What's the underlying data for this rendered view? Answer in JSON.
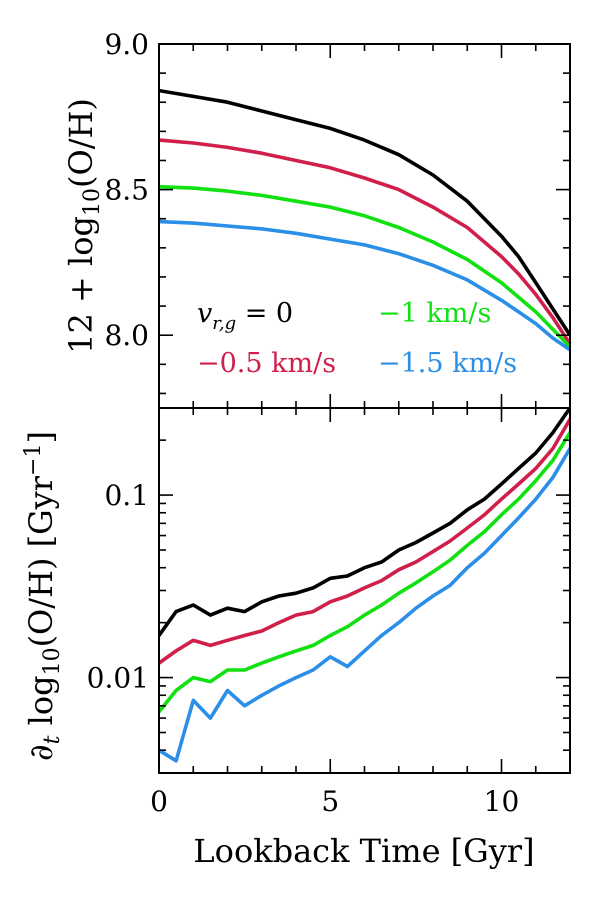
{
  "chart_data": [
    {
      "type": "line",
      "ylabel": "12 + log10(O/H)",
      "xlim": [
        0,
        12
      ],
      "ylim": [
        7.75,
        9.0
      ],
      "yticks": [
        {
          "value": 8.0,
          "label": "8.0"
        },
        {
          "value": 8.5,
          "label": "8.5"
        },
        {
          "value": 9.0,
          "label": "9.0"
        }
      ],
      "legend_placement": "lower-left",
      "x": [
        0,
        1,
        2,
        3,
        4,
        5,
        6,
        7,
        8,
        9,
        10,
        10.5,
        11,
        11.5,
        12
      ],
      "series": [
        {
          "name": "v_{r,g} = 0",
          "color": "#000000",
          "values": [
            8.84,
            8.82,
            8.8,
            8.77,
            8.74,
            8.71,
            8.67,
            8.62,
            8.55,
            8.46,
            8.34,
            8.27,
            8.18,
            8.09,
            8.0
          ]
        },
        {
          "name": "−0.5 km/s",
          "color": "#d01f4a",
          "values": [
            8.67,
            8.66,
            8.645,
            8.625,
            8.6,
            8.575,
            8.54,
            8.5,
            8.44,
            8.37,
            8.27,
            8.21,
            8.14,
            8.06,
            7.97
          ]
        },
        {
          "name": "−1 km/s",
          "color": "#11e011",
          "values": [
            8.51,
            8.505,
            8.495,
            8.48,
            8.46,
            8.44,
            8.41,
            8.37,
            8.32,
            8.26,
            8.18,
            8.13,
            8.08,
            8.02,
            7.96
          ]
        },
        {
          "name": "−1.5 km/s",
          "color": "#2b8fe8",
          "values": [
            8.39,
            8.385,
            8.375,
            8.365,
            8.35,
            8.33,
            8.31,
            8.28,
            8.24,
            8.19,
            8.12,
            8.08,
            8.04,
            7.99,
            7.95
          ]
        }
      ]
    },
    {
      "type": "line",
      "xlabel": "Lookback Time [Gyr]",
      "ylabel": "∂t log10(O/H) [Gyr−1]",
      "xlim": [
        0,
        12
      ],
      "ylim": [
        0.003,
        0.3
      ],
      "yscale": "log",
      "xticks": [
        {
          "value": 0,
          "label": "0"
        },
        {
          "value": 5,
          "label": "5"
        },
        {
          "value": 10,
          "label": "10"
        }
      ],
      "yticks": [
        {
          "value": 0.01,
          "label": "0.01"
        },
        {
          "value": 0.1,
          "label": "0.1"
        }
      ],
      "x": [
        0,
        0.5,
        1,
        1.5,
        2,
        2.5,
        3,
        3.5,
        4,
        4.5,
        5,
        5.5,
        6,
        6.5,
        7,
        7.5,
        8,
        8.5,
        9,
        9.5,
        10,
        10.5,
        11,
        11.5,
        12
      ],
      "series": [
        {
          "name": "v_{r,g} = 0",
          "color": "#000000",
          "values": [
            0.017,
            0.023,
            0.025,
            0.022,
            0.024,
            0.023,
            0.026,
            0.028,
            0.029,
            0.031,
            0.035,
            0.036,
            0.04,
            0.043,
            0.05,
            0.055,
            0.062,
            0.07,
            0.083,
            0.095,
            0.115,
            0.14,
            0.17,
            0.22,
            0.3
          ]
        },
        {
          "name": "−0.5 km/s",
          "color": "#d01f4a",
          "values": [
            0.012,
            0.014,
            0.016,
            0.015,
            0.016,
            0.017,
            0.018,
            0.02,
            0.022,
            0.023,
            0.026,
            0.028,
            0.031,
            0.034,
            0.039,
            0.043,
            0.049,
            0.056,
            0.066,
            0.078,
            0.095,
            0.115,
            0.14,
            0.18,
            0.26
          ]
        },
        {
          "name": "−1 km/s",
          "color": "#11e011",
          "values": [
            0.0065,
            0.0085,
            0.01,
            0.0095,
            0.011,
            0.011,
            0.012,
            0.013,
            0.014,
            0.015,
            0.017,
            0.019,
            0.022,
            0.025,
            0.029,
            0.033,
            0.038,
            0.044,
            0.053,
            0.063,
            0.078,
            0.095,
            0.12,
            0.155,
            0.22
          ]
        },
        {
          "name": "−1.5 km/s",
          "color": "#2b8fe8",
          "values": [
            0.004,
            0.0035,
            0.0075,
            0.006,
            0.0085,
            0.007,
            0.008,
            0.009,
            0.01,
            0.011,
            0.013,
            0.0115,
            0.014,
            0.017,
            0.02,
            0.024,
            0.028,
            0.032,
            0.04,
            0.048,
            0.06,
            0.075,
            0.095,
            0.125,
            0.18
          ]
        }
      ]
    }
  ]
}
